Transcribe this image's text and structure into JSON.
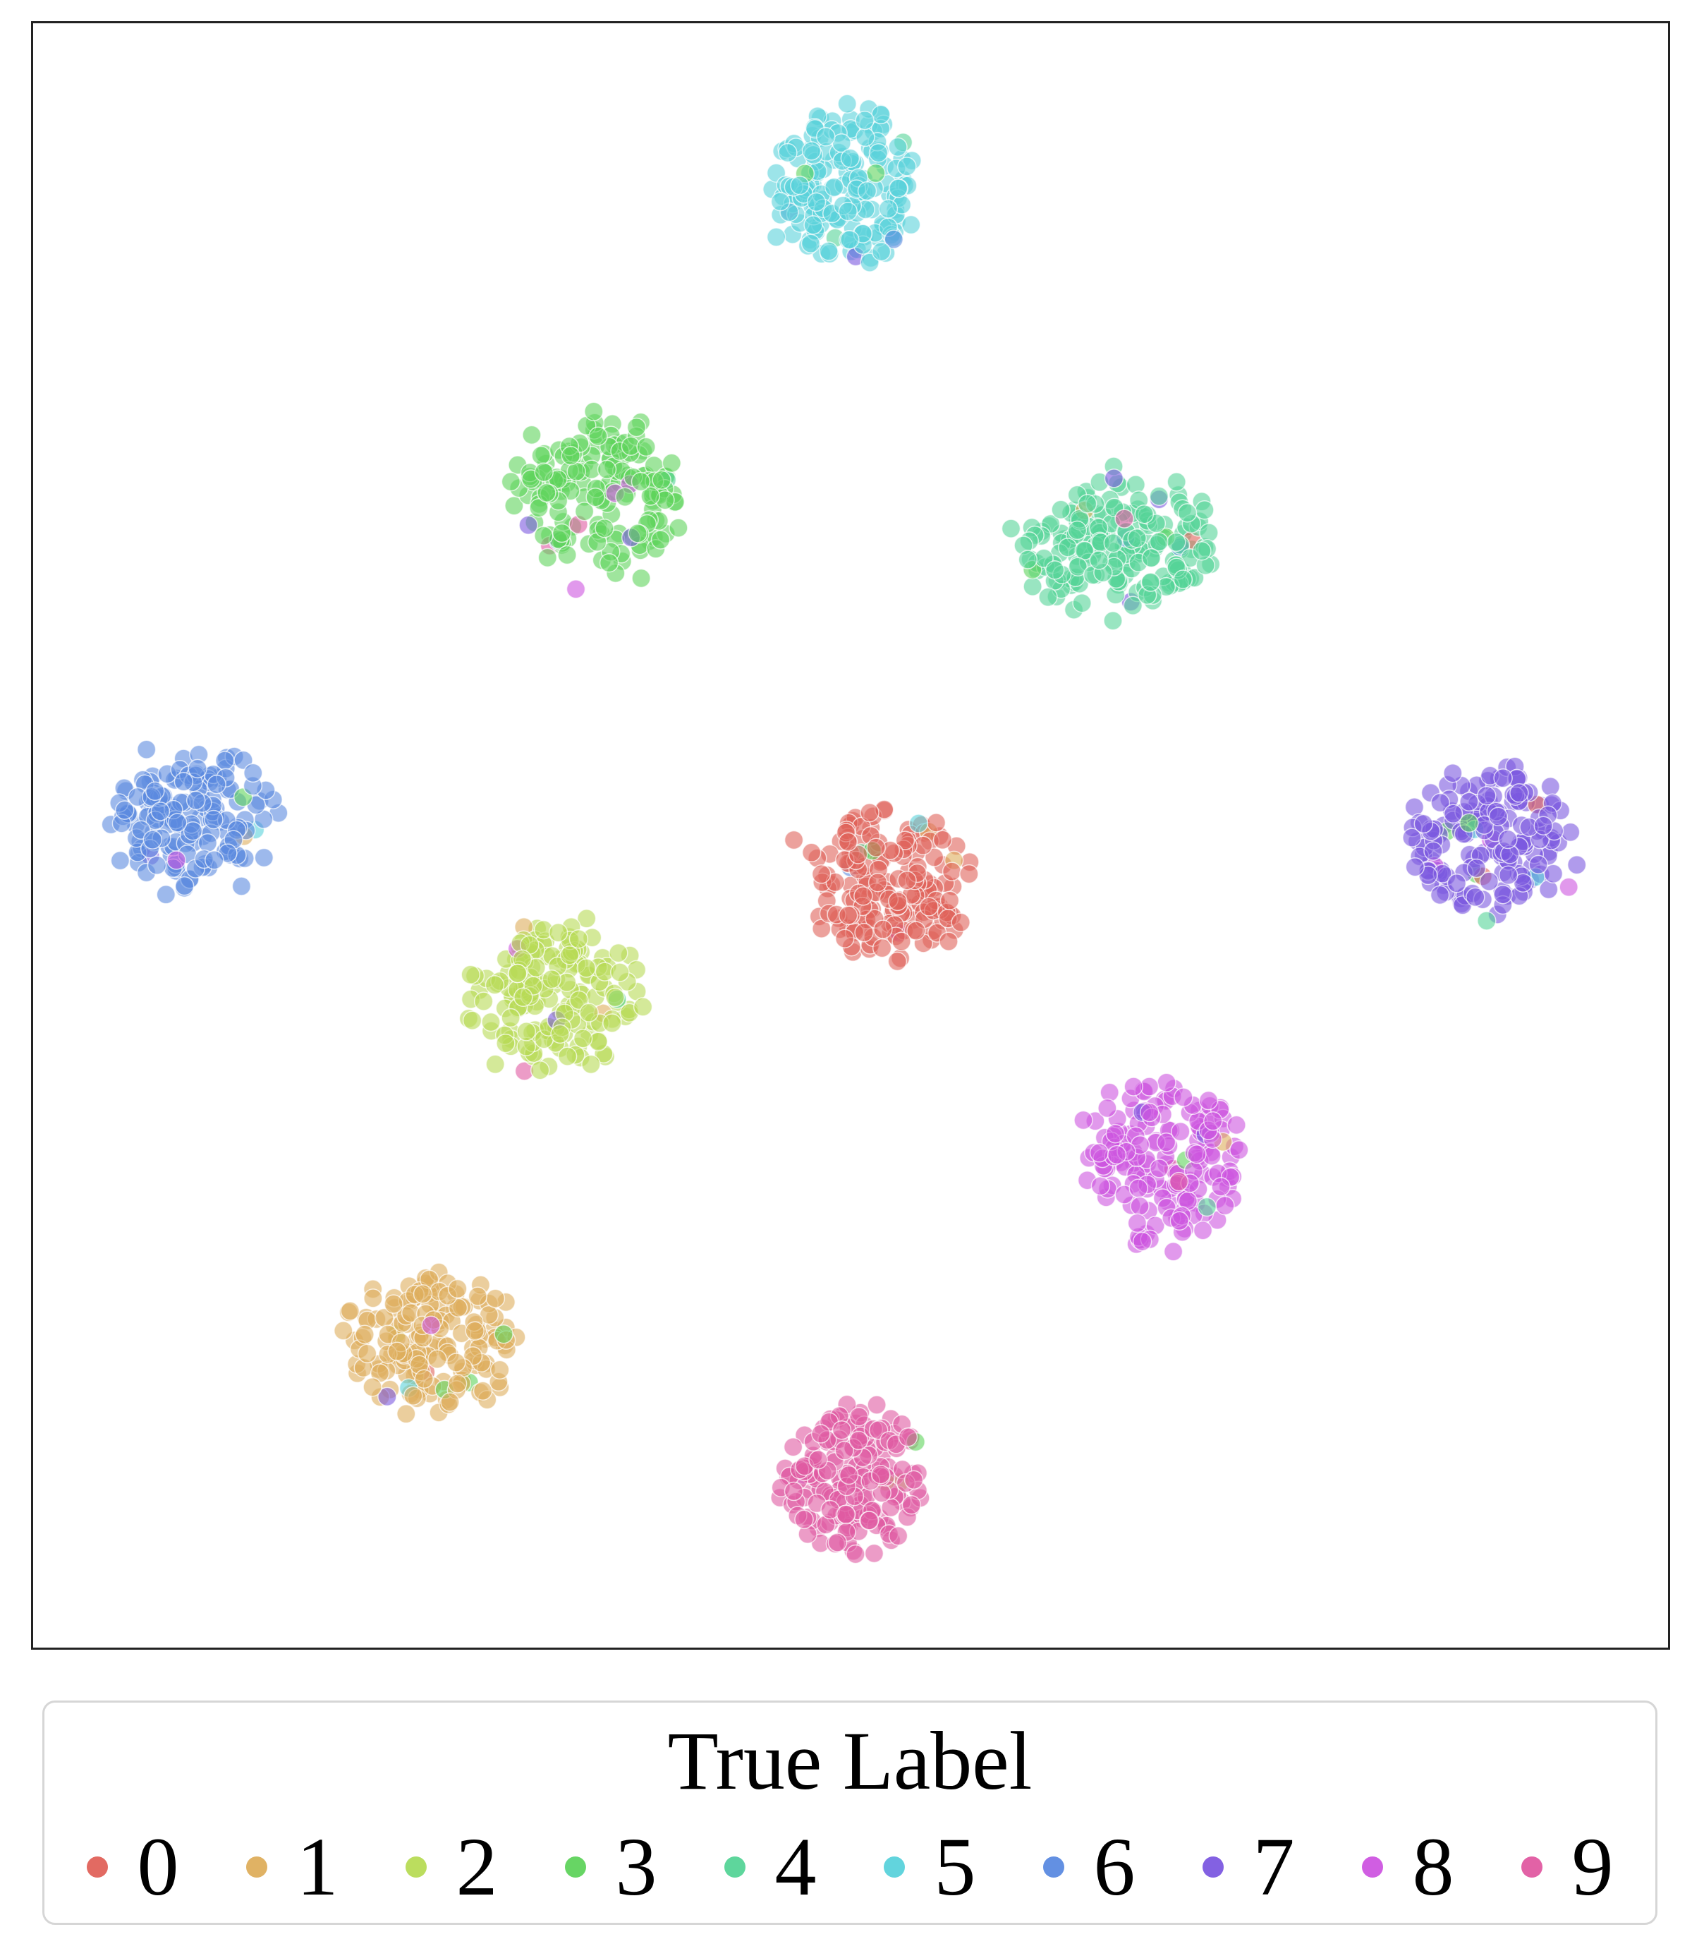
{
  "chart_data": {
    "type": "scatter",
    "title": "",
    "xlabel": "",
    "ylabel": "",
    "grid": false,
    "ticks": false,
    "xlim": [
      0,
      100
    ],
    "ylim": [
      0,
      100
    ],
    "legend": {
      "title": "True Label",
      "placement": "bottom"
    },
    "series": [
      {
        "name": "0",
        "color": "#e0625a",
        "center": [
          52.2,
          47.2
        ],
        "spread": [
          4.6,
          4.6
        ],
        "count": 180
      },
      {
        "name": "1",
        "color": "#deae5c",
        "center": [
          24.5,
          18.8
        ],
        "spread": [
          4.9,
          4.0
        ],
        "count": 170
      },
      {
        "name": "2",
        "color": "#b7db55",
        "center": [
          31.9,
          39.9
        ],
        "spread": [
          4.9,
          4.4
        ],
        "count": 170
      },
      {
        "name": "3",
        "color": "#5fd35c",
        "center": [
          34.6,
          70.8
        ],
        "spread": [
          4.9,
          4.5
        ],
        "count": 170
      },
      {
        "name": "4",
        "color": "#55d497",
        "center": [
          66.4,
          67.8
        ],
        "spread": [
          5.8,
          3.9
        ],
        "count": 200
      },
      {
        "name": "5",
        "color": "#5ad2db",
        "center": [
          49.6,
          89.9
        ],
        "spread": [
          4.4,
          4.7
        ],
        "count": 180
      },
      {
        "name": "6",
        "color": "#5b8ae0",
        "center": [
          9.6,
          51.2
        ],
        "spread": [
          4.8,
          3.8
        ],
        "count": 170
      },
      {
        "name": "7",
        "color": "#7c58e0",
        "center": [
          89.1,
          49.6
        ],
        "spread": [
          4.6,
          4.4
        ],
        "count": 170
      },
      {
        "name": "8",
        "color": "#cd55e0",
        "center": [
          69.1,
          29.9
        ],
        "spread": [
          4.6,
          4.8
        ],
        "count": 170
      },
      {
        "name": "9",
        "color": "#e05aa1",
        "center": [
          50.4,
          10.5
        ],
        "spread": [
          4.4,
          4.4
        ],
        "count": 170
      }
    ]
  }
}
